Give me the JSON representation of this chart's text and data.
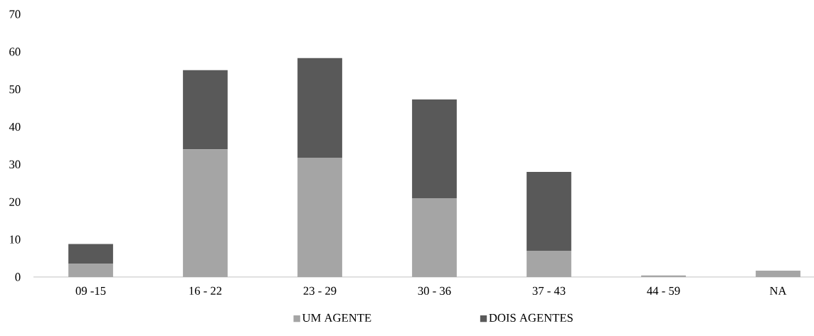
{
  "chart_data": {
    "type": "bar",
    "stacked": true,
    "categories": [
      "09 -15",
      "16 - 22",
      "23 - 29",
      "30 - 36",
      "37 - 43",
      "44 - 59",
      "NA"
    ],
    "series": [
      {
        "name": "UM AGENTE",
        "color": "#a5a5a5",
        "values": [
          3.5,
          34,
          31.8,
          21,
          7,
          0.4,
          1.7
        ]
      },
      {
        "name": "DOIS AGENTES",
        "color": "#595959",
        "values": [
          5.3,
          21.1,
          26.5,
          26.3,
          21,
          0,
          0
        ]
      }
    ],
    "ylim": [
      0,
      70
    ],
    "yticks": [
      0,
      10,
      20,
      30,
      40,
      50,
      60,
      70
    ],
    "legend": "bottom"
  }
}
